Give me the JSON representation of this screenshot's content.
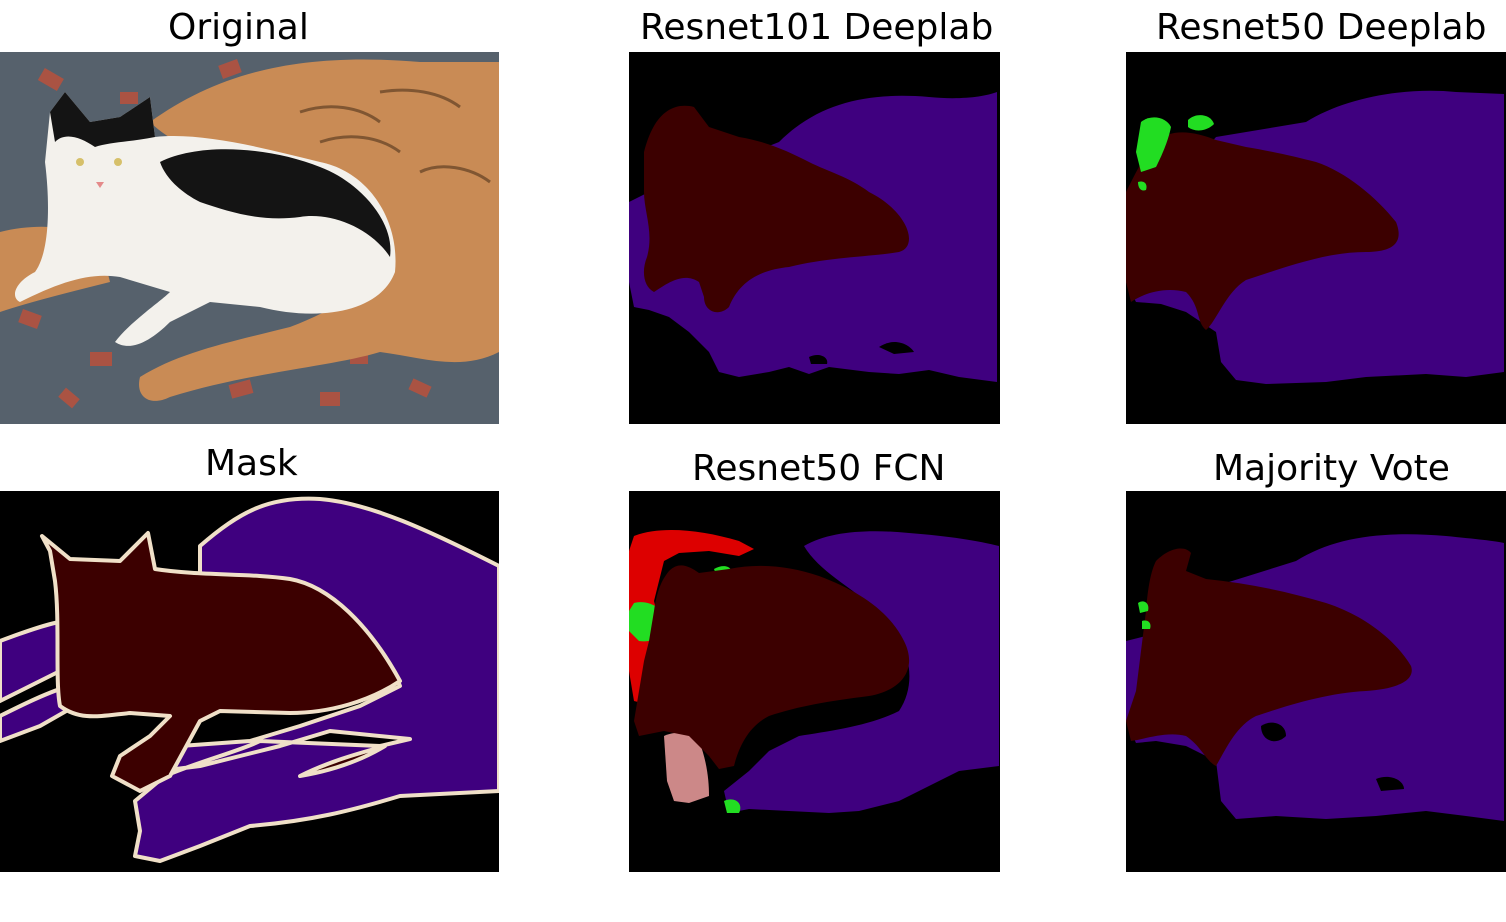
{
  "panels": {
    "original": {
      "title": "Original"
    },
    "resnet101_deeplab": {
      "title": "Resnet101 Deeplab"
    },
    "resnet50_deeplab": {
      "title": "Resnet50 Deeplab"
    },
    "mask": {
      "title": "Mask"
    },
    "resnet50_fcn": {
      "title": "Resnet50 FCN"
    },
    "majority_vote": {
      "title": "Majority Vote"
    }
  },
  "colors": {
    "background": "#000000",
    "cat": "#3c0000",
    "dog": "#3f007f",
    "green": "#22dd22",
    "red": "#dd0000",
    "pink": "#cc8888",
    "border": "#f0e0c8"
  }
}
